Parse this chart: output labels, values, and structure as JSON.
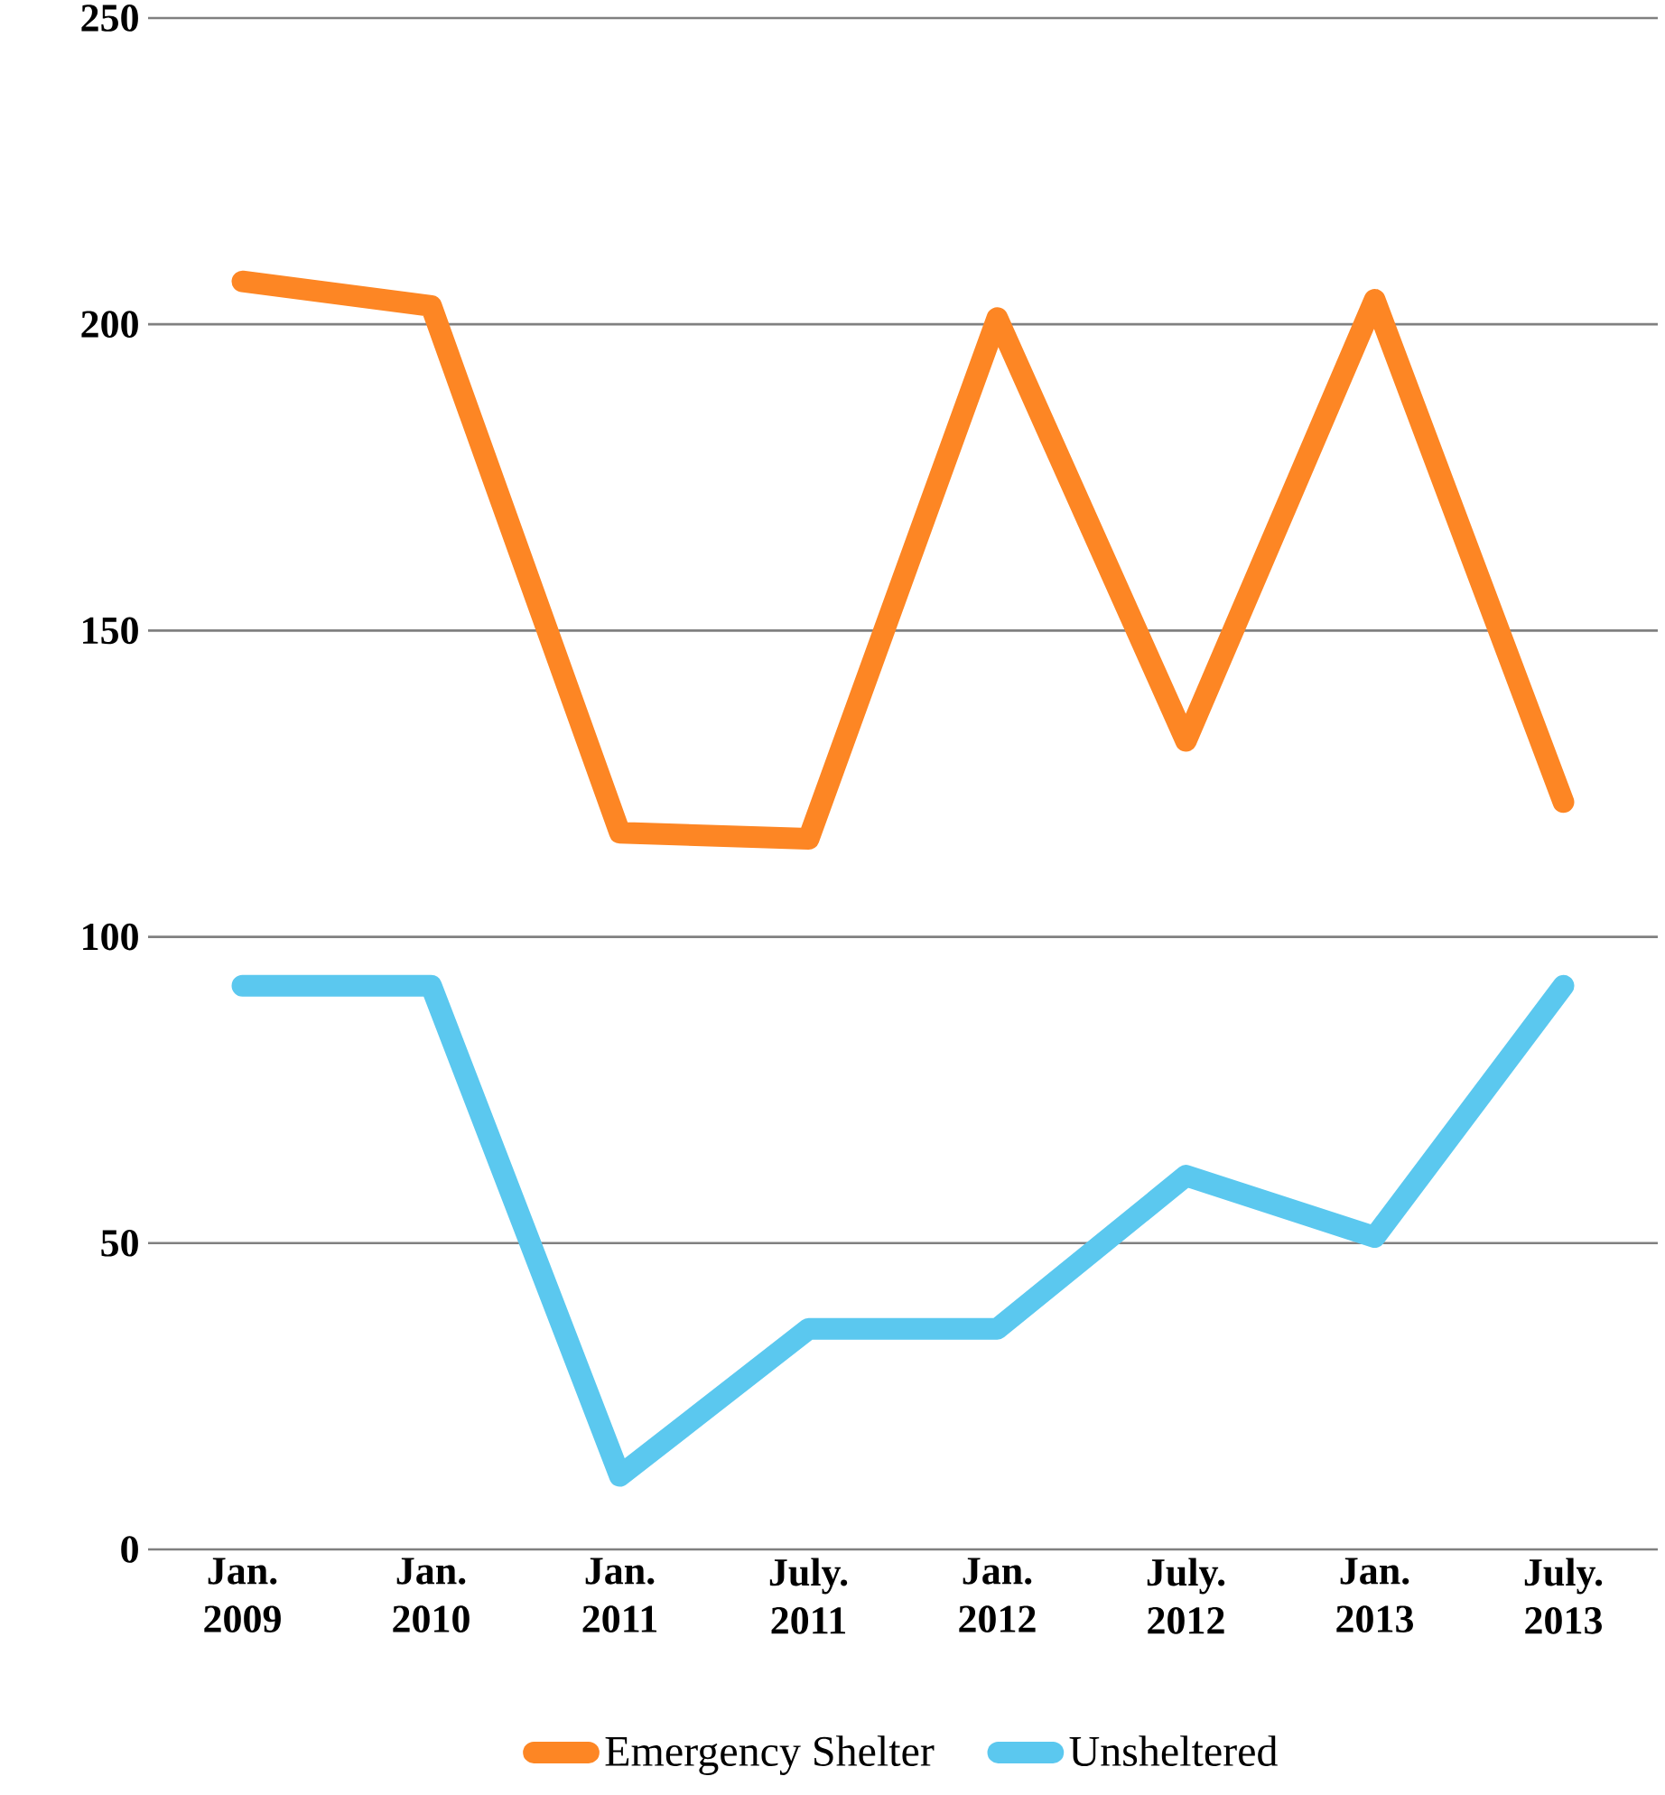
{
  "chart_data": {
    "type": "line",
    "categories": [
      "Jan. 2009",
      "Jan. 2010",
      "Jan. 2011",
      "July. 2011",
      "Jan. 2012",
      "July. 2012",
      "Jan. 2013",
      "July. 2013"
    ],
    "series": [
      {
        "name": "Emergency Shelter",
        "color": "#fd8624",
        "values": [
          207,
          203,
          117,
          116,
          201,
          132,
          204,
          122
        ]
      },
      {
        "name": "Unsheltered",
        "color": "#5bc8ef",
        "values": [
          92,
          92,
          12,
          36,
          36,
          61,
          51,
          92
        ]
      }
    ],
    "ylim": [
      0,
      250
    ],
    "yticks": [
      0,
      50,
      100,
      150,
      200,
      250
    ],
    "grid": "y",
    "legend": "bottom"
  }
}
